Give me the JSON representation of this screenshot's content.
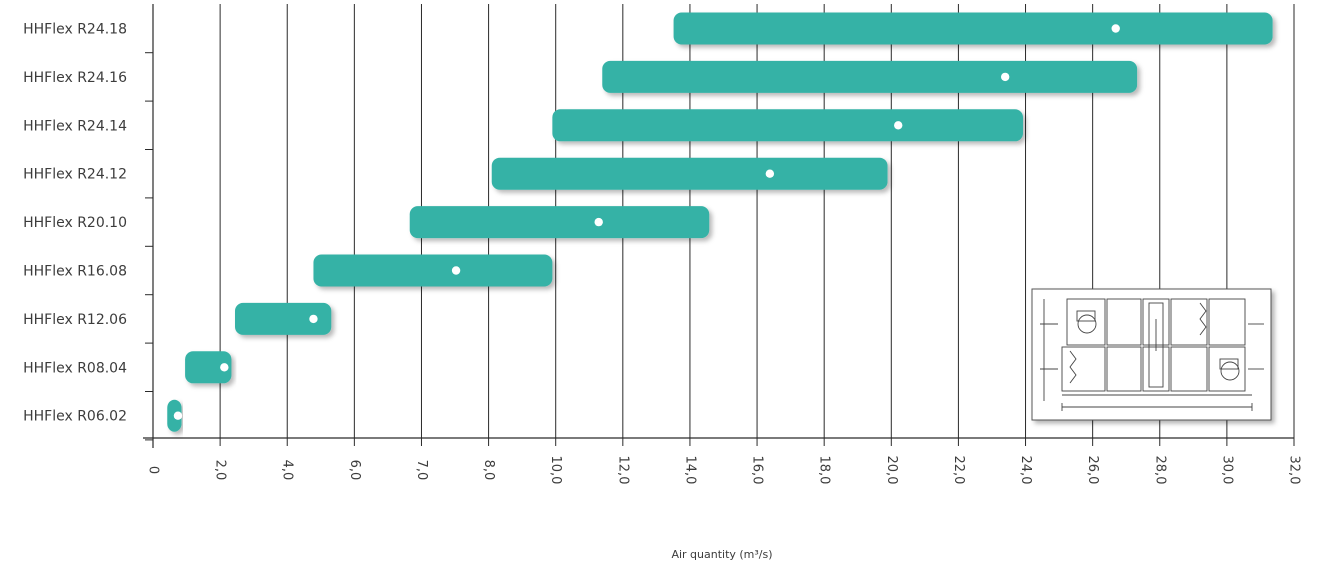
{
  "chart_data": {
    "type": "bar",
    "orientation": "horizontal-range",
    "categories": [
      "HHFlex R24.18",
      "HHFlex R24.16",
      "HHFlex R24.14",
      "HHFlex R24.12",
      "HHFlex R20.10",
      "HHFlex R16.08",
      "HHFlex R12.06",
      "HHFlex R08.04",
      "HHFlex R06.02"
    ],
    "ranges": [
      {
        "min": 14.6,
        "max": 31.4,
        "marker": 27.0
      },
      {
        "min": 12.6,
        "max": 27.6,
        "marker": 23.9
      },
      {
        "min": 11.2,
        "max": 24.4,
        "marker": 20.9
      },
      {
        "min": 9.5,
        "max": 20.6,
        "marker": 17.3
      },
      {
        "min": 7.2,
        "max": 15.6,
        "marker": 12.5
      },
      {
        "min": 4.5,
        "max": 11.2,
        "marker": 8.5
      },
      {
        "min": 2.3,
        "max": 5.0,
        "marker": 4.5
      },
      {
        "min": 0.9,
        "max": 2.2,
        "marker": 2.0
      },
      {
        "min": 0.4,
        "max": 0.8,
        "marker": 0.7
      }
    ],
    "x_ticks": [
      "0",
      "2,0",
      "4,0",
      "6,0",
      "7,0",
      "8,0",
      "10,0",
      "12,0",
      "14,0",
      "16,0",
      "18,0",
      "20,0",
      "22,0",
      "24,0",
      "26,0",
      "28,0",
      "30,0",
      "32,0"
    ],
    "xlim": [
      0,
      32
    ],
    "xlabel": "Air quantity (m³/s)",
    "grid": true,
    "colors": {
      "bar": "#35b2a6",
      "marker": "#ffffff",
      "grid": "#2a2a2a",
      "text": "#3c3c3c"
    }
  },
  "inset": {
    "icon": "air-handling-unit-drawing-icon"
  }
}
